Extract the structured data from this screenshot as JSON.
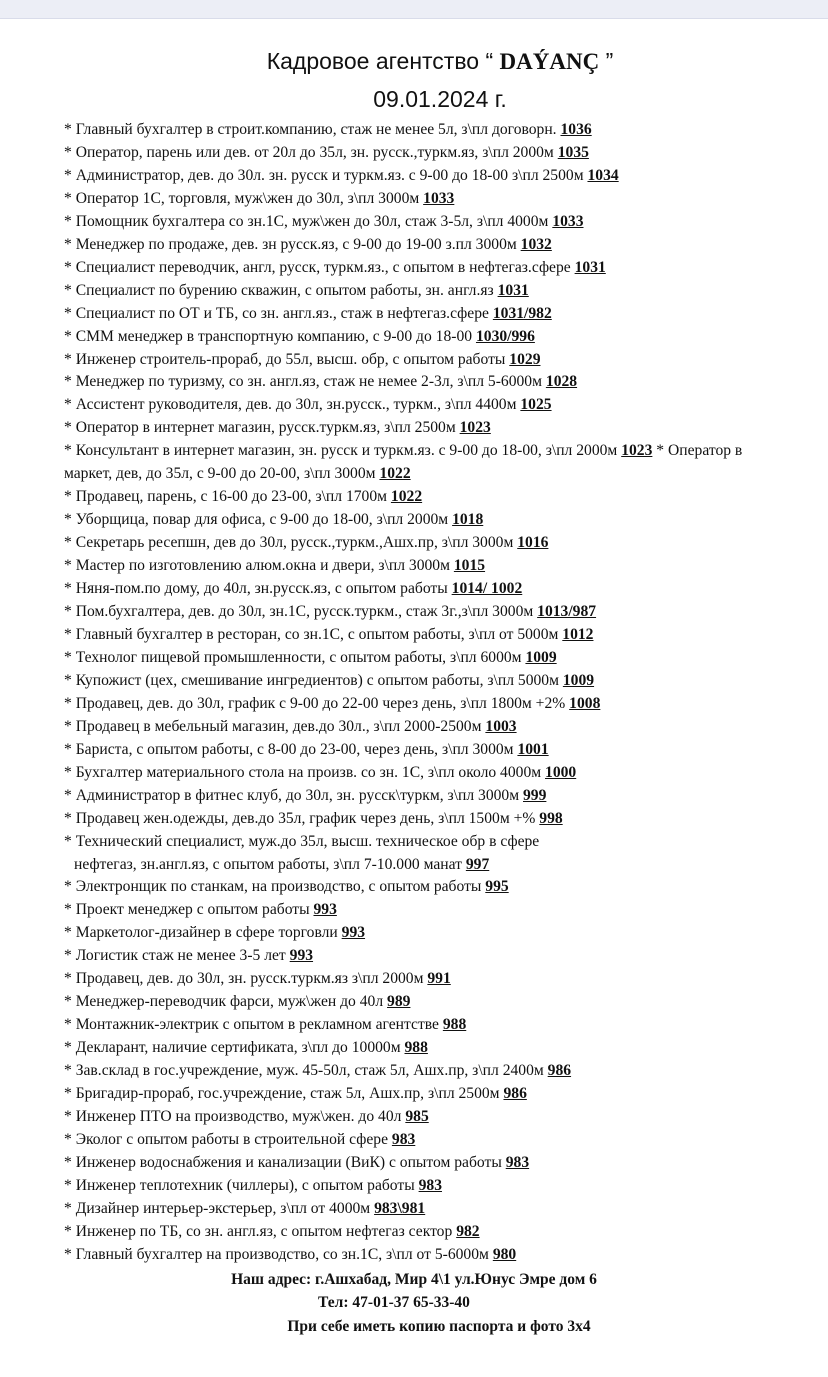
{
  "header": {
    "title_prefix": "Кадровое агентство “ ",
    "brand": "DAÝANÇ",
    "title_suffix": " ”",
    "date": "09.01.2024 г."
  },
  "items": [
    {
      "text": "Главный бухгалтер в строит.компанию, стаж не менее 5л, з\\пл договорн.",
      "code": "1036"
    },
    {
      "text": "Оператор, парень или дев. от 20л до 35л, зн. русск.,туркм.яз, з\\пл 2000м",
      "code": "1035"
    },
    {
      "text": "Администратор, дев. до 30л. зн. русск и туркм.яз. с 9-00 до 18-00 з\\пл 2500м",
      "code": "1034"
    },
    {
      "text": "Оператор 1С, торговля, муж\\жен до 30л, з\\пл 3000м",
      "code": "1033"
    },
    {
      "text": "Помощник бухгалтера со зн.1С, муж\\жен до 30л, стаж 3-5л, з\\пл 4000м",
      "code": "1033"
    },
    {
      "text": "Менеджер по продаже, дев. зн русск.яз, с 9-00 до 19-00 з.пл 3000м",
      "code": "1032"
    },
    {
      "text": "Специалист переводчик, англ, русск, туркм.яз., с опытом в нефтегаз.сфере",
      "code": "1031"
    },
    {
      "text": "Специалист по бурению скважин, с опытом работы, зн. англ.яз",
      "code": "1031"
    },
    {
      "text": "Специалист по ОТ и ТБ, со зн. англ.яз., стаж в нефтегаз.сфере",
      "code": "1031/982"
    },
    {
      "text": "СММ менеджер в транспортную компанию, с 9-00 до 18-00",
      "code": "1030/996"
    },
    {
      "text": "Инженер строитель-прораб, до 55л, высш. обр, с опытом работы",
      "code": "1029"
    },
    {
      "text": "Менеджер по туризму, со зн. англ.яз, стаж не немее 2-3л, з\\пл 5-6000м",
      "code": "1028"
    },
    {
      "text": "Ассистент руководителя, дев. до 30л, зн.русск., туркм., з\\пл 4400м",
      "code": "1025"
    },
    {
      "text": "Оператор в интернет магазин, русск.туркм.яз, з\\пл 2500м",
      "code": "1023"
    },
    {
      "text": "Консультант в интернет магазин, зн. русск и туркм.яз. с 9-00 до 18-00, з\\пл 2000м",
      "code": "1023",
      "extra_text": "* Оператор в маркет, дев, до 35л, с 9-00 до 20-00, з\\пл 3000м",
      "extra_code": "1022"
    },
    {
      "text": "Продавец, парень, с 16-00 до 23-00, з\\пл 1700м",
      "code": "1022"
    },
    {
      "text": "Уборщица, повар для офиса, с 9-00 до 18-00, з\\пл 2000м",
      "code": "1018"
    },
    {
      "text": "Секретарь ресепшн, дев до 30л, русск.,туркм.,Ашх.пр, з\\пл 3000м",
      "code": "1016"
    },
    {
      "text": "Мастер по изготовлению алюм.окна и двери, з\\пл 3000м",
      "code": "1015"
    },
    {
      "text": "Няня-пом.по дому, до 40л, зн.русск.яз, с опытом работы",
      "code": "1014/ 1002"
    },
    {
      "text": "Пом.бухгалтера, дев. до 30л, зн.1С, русск.туркм., стаж 3г.,з\\пл 3000м ",
      "code": "1013/987"
    },
    {
      "text": "Главный бухгалтер в ресторан, со зн.1С, с опытом работы, з\\пл от 5000м",
      "code": "1012"
    },
    {
      "text": "Технолог пищевой промышленности, с опытом работы, з\\пл 6000м",
      "code": "1009"
    },
    {
      "text": "Купожист (цех, смешивание ингредиентов) с опытом работы, з\\пл 5000м",
      "code": "1009"
    },
    {
      "text": "Продавец, дев. до 30л, график с 9-00 до 22-00 через день, з\\пл 1800м +2%",
      "code": "1008"
    },
    {
      "text": "Продавец в мебельный магазин, дев.до 30л., з\\пл 2000-2500м",
      "code": "1003"
    },
    {
      "text": "Бариста, с опытом работы, с 8-00 до 23-00, через день, з\\пл 3000м",
      "code": "1001"
    },
    {
      "text": "Бухгалтер материального стола на произв. со зн. 1С, з\\пл около 4000м",
      "code": "1000"
    },
    {
      "text": "Администратор в фитнес клуб, до 30л, зн. русск\\туркм, з\\пл 3000м",
      "code": "999"
    },
    {
      "text": "Продавец жен.одежды, дев.до 35л,  график через день, з\\пл 1500м +%",
      "code": "998"
    },
    {
      "text": "Технический специалист, муж.до 35л, высш. техническое обр в сфере",
      "cont_text": "нефтегаз, зн.англ.яз, с опытом работы, з\\пл 7-10.000 манат ",
      "code": "997"
    },
    {
      "text": "Электронщик по станкам, на производство, с опытом работы",
      "code": "995"
    },
    {
      "text": "Проект менеджер с опытом работы",
      "code": "993"
    },
    {
      "text": "Маркетолог-дизайнер в сфере торговли",
      "code": "993"
    },
    {
      "text": "Логистик стаж не менее 3-5 лет",
      "code": "993"
    },
    {
      "text": "Продавец, дев. до 30л, зн. русск.туркм.яз з\\пл 2000м  ",
      "code": "991"
    },
    {
      "text": "Менеджер-переводчик фарси, муж\\жен до 40л",
      "code": "989"
    },
    {
      "text": "Монтажник-электрик с опытом в рекламном агентстве",
      "code": "988"
    },
    {
      "text": "Декларант, наличие сертификата, з\\пл до 10000м",
      "code": "988"
    },
    {
      "text": "Зав.склад в гос.учреждение, муж. 45-50л, стаж 5л, Ашх.пр, з\\пл 2400м",
      "code": "986"
    },
    {
      "text": "Бригадир-прораб, гос.учреждение, стаж 5л, Ашх.пр, з\\пл 2500м",
      "code": "986"
    },
    {
      "text": "Инженер ПТО на производство, муж\\жен. до 40л",
      "code": "985"
    },
    {
      "text": "Эколог с опытом работы в строительной сфере",
      "code": "983"
    },
    {
      "text": "Инженер водоснабжения и канализации (ВиК) с опытом работы",
      "code": "983"
    },
    {
      "text": "Инженер теплотехник (чиллеры), с опытом работы",
      "code": "983"
    },
    {
      "text": "Дизайнер интерьер-экстерьер, з\\пл от 4000м",
      "code": "983\\981"
    },
    {
      "text": "Инженер по ТБ, со зн. англ.яз, с опытом нефтегаз сектор",
      "code": "982"
    },
    {
      "text": "Главный бухгалтер на производство, со зн.1С, з\\пл от 5-6000м",
      "code": "980"
    }
  ],
  "footer": {
    "address": "Наш адрес: г.Ашхабад, Мир 4\\1 ул.Юнус Эмре дом 6",
    "phone": "Тел: 47-01-37   65-33-40",
    "note": "При себе иметь копию паспорта и фото 3x4"
  }
}
